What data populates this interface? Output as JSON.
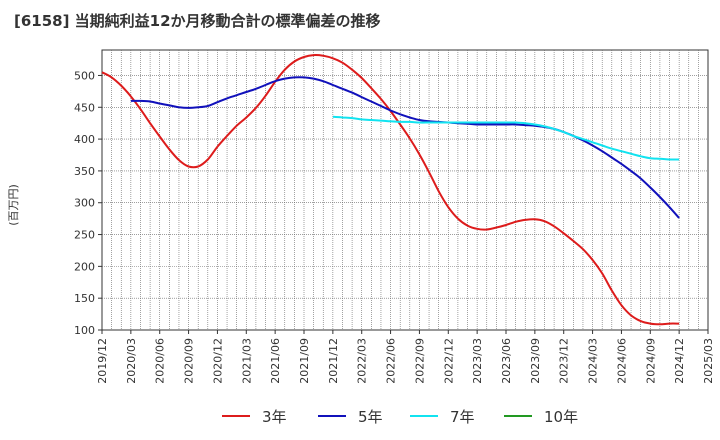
{
  "chart_data": {
    "type": "line",
    "title": "[6158]  当期純利益12か月移動合計の標準偏差の推移",
    "ylabel": "(百万円)",
    "xlabel": "",
    "ylim": [
      100,
      540
    ],
    "yticks": [
      100,
      150,
      200,
      250,
      300,
      350,
      400,
      450,
      500
    ],
    "xlim": [
      "2019-12",
      "2025-03"
    ],
    "xticks": [
      "2019/12",
      "2020/03",
      "2020/06",
      "2020/09",
      "2020/12",
      "2021/03",
      "2021/06",
      "2021/09",
      "2021/12",
      "2022/03",
      "2022/06",
      "2022/09",
      "2022/12",
      "2023/03",
      "2023/06",
      "2023/09",
      "2023/12",
      "2024/03",
      "2024/06",
      "2024/09",
      "2024/12",
      "2025/03"
    ],
    "grid": true,
    "legend_position": "bottom",
    "series": [
      {
        "name": "3年",
        "color": "#dd1c1c",
        "points": [
          [
            "2019-12",
            505
          ],
          [
            "2020-01",
            497
          ],
          [
            "2020-02",
            484
          ],
          [
            "2020-03",
            467
          ],
          [
            "2020-04",
            447
          ],
          [
            "2020-05",
            425
          ],
          [
            "2020-06",
            404
          ],
          [
            "2020-07",
            384
          ],
          [
            "2020-08",
            367
          ],
          [
            "2020-09",
            357
          ],
          [
            "2020-10",
            357
          ],
          [
            "2020-11",
            368
          ],
          [
            "2020-12",
            388
          ],
          [
            "2021-01",
            405
          ],
          [
            "2021-02",
            421
          ],
          [
            "2021-03",
            434
          ],
          [
            "2021-04",
            449
          ],
          [
            "2021-05",
            468
          ],
          [
            "2021-06",
            490
          ],
          [
            "2021-07",
            509
          ],
          [
            "2021-08",
            522
          ],
          [
            "2021-09",
            529
          ],
          [
            "2021-10",
            532
          ],
          [
            "2021-11",
            531
          ],
          [
            "2021-12",
            527
          ],
          [
            "2022-01",
            520
          ],
          [
            "2022-02",
            509
          ],
          [
            "2022-03",
            496
          ],
          [
            "2022-04",
            480
          ],
          [
            "2022-05",
            463
          ],
          [
            "2022-06",
            444
          ],
          [
            "2022-07",
            423
          ],
          [
            "2022-08",
            401
          ],
          [
            "2022-09",
            376
          ],
          [
            "2022-10",
            348
          ],
          [
            "2022-11",
            318
          ],
          [
            "2022-12",
            293
          ],
          [
            "2023-01",
            275
          ],
          [
            "2023-02",
            264
          ],
          [
            "2023-03",
            259
          ],
          [
            "2023-04",
            258
          ],
          [
            "2023-05",
            261
          ],
          [
            "2023-06",
            265
          ],
          [
            "2023-07",
            270
          ],
          [
            "2023-08",
            273
          ],
          [
            "2023-09",
            274
          ],
          [
            "2023-10",
            271
          ],
          [
            "2023-11",
            263
          ],
          [
            "2023-12",
            252
          ],
          [
            "2024-01",
            240
          ],
          [
            "2024-02",
            227
          ],
          [
            "2024-03",
            210
          ],
          [
            "2024-04",
            189
          ],
          [
            "2024-05",
            162
          ],
          [
            "2024-06",
            139
          ],
          [
            "2024-07",
            123
          ],
          [
            "2024-08",
            114
          ],
          [
            "2024-09",
            110
          ],
          [
            "2024-10",
            109
          ],
          [
            "2024-11",
            110
          ],
          [
            "2024-12",
            110
          ]
        ]
      },
      {
        "name": "5年",
        "color": "#1111bb",
        "points": [
          [
            "2020-03",
            460
          ],
          [
            "2020-04",
            460
          ],
          [
            "2020-05",
            459
          ],
          [
            "2020-06",
            456
          ],
          [
            "2020-07",
            453
          ],
          [
            "2020-08",
            450
          ],
          [
            "2020-09",
            449
          ],
          [
            "2020-10",
            450
          ],
          [
            "2020-11",
            452
          ],
          [
            "2020-12",
            458
          ],
          [
            "2021-01",
            464
          ],
          [
            "2021-02",
            469
          ],
          [
            "2021-03",
            474
          ],
          [
            "2021-04",
            479
          ],
          [
            "2021-05",
            485
          ],
          [
            "2021-06",
            491
          ],
          [
            "2021-07",
            495
          ],
          [
            "2021-08",
            497
          ],
          [
            "2021-09",
            497
          ],
          [
            "2021-10",
            495
          ],
          [
            "2021-11",
            491
          ],
          [
            "2021-12",
            485
          ],
          [
            "2022-01",
            479
          ],
          [
            "2022-02",
            473
          ],
          [
            "2022-03",
            466
          ],
          [
            "2022-04",
            459
          ],
          [
            "2022-05",
            452
          ],
          [
            "2022-06",
            445
          ],
          [
            "2022-07",
            439
          ],
          [
            "2022-08",
            434
          ],
          [
            "2022-09",
            430
          ],
          [
            "2022-10",
            428
          ],
          [
            "2022-11",
            427
          ],
          [
            "2022-12",
            426
          ],
          [
            "2023-01",
            425
          ],
          [
            "2023-02",
            424
          ],
          [
            "2023-03",
            423
          ],
          [
            "2023-04",
            423
          ],
          [
            "2023-05",
            423
          ],
          [
            "2023-06",
            423
          ],
          [
            "2023-07",
            423
          ],
          [
            "2023-08",
            422
          ],
          [
            "2023-09",
            421
          ],
          [
            "2023-10",
            419
          ],
          [
            "2023-11",
            416
          ],
          [
            "2023-12",
            411
          ],
          [
            "2024-01",
            405
          ],
          [
            "2024-02",
            398
          ],
          [
            "2024-03",
            390
          ],
          [
            "2024-04",
            381
          ],
          [
            "2024-05",
            371
          ],
          [
            "2024-06",
            361
          ],
          [
            "2024-07",
            350
          ],
          [
            "2024-08",
            338
          ],
          [
            "2024-09",
            324
          ],
          [
            "2024-10",
            309
          ],
          [
            "2024-11",
            293
          ],
          [
            "2024-12",
            276
          ]
        ]
      },
      {
        "name": "7年",
        "color": "#11e3f0",
        "points": [
          [
            "2021-12",
            435
          ],
          [
            "2022-01",
            434
          ],
          [
            "2022-02",
            433
          ],
          [
            "2022-03",
            431
          ],
          [
            "2022-04",
            430
          ],
          [
            "2022-05",
            429
          ],
          [
            "2022-06",
            428
          ],
          [
            "2022-07",
            427
          ],
          [
            "2022-08",
            427
          ],
          [
            "2022-09",
            426
          ],
          [
            "2022-10",
            426
          ],
          [
            "2022-11",
            426
          ],
          [
            "2022-12",
            426
          ],
          [
            "2023-01",
            426
          ],
          [
            "2023-02",
            426
          ],
          [
            "2023-03",
            426
          ],
          [
            "2023-04",
            426
          ],
          [
            "2023-05",
            426
          ],
          [
            "2023-06",
            426
          ],
          [
            "2023-07",
            426
          ],
          [
            "2023-08",
            425
          ],
          [
            "2023-09",
            423
          ],
          [
            "2023-10",
            420
          ],
          [
            "2023-11",
            416
          ],
          [
            "2023-12",
            411
          ],
          [
            "2024-01",
            405
          ],
          [
            "2024-02",
            400
          ],
          [
            "2024-03",
            395
          ],
          [
            "2024-04",
            390
          ],
          [
            "2024-05",
            385
          ],
          [
            "2024-06",
            381
          ],
          [
            "2024-07",
            377
          ],
          [
            "2024-08",
            373
          ],
          [
            "2024-09",
            370
          ],
          [
            "2024-10",
            369
          ],
          [
            "2024-11",
            368
          ],
          [
            "2024-12",
            368
          ]
        ]
      },
      {
        "name": "10年",
        "color": "#229922",
        "points": []
      }
    ]
  }
}
